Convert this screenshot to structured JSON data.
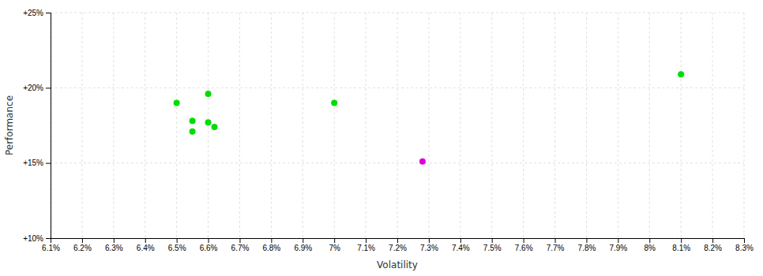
{
  "chart_data": {
    "type": "scatter",
    "xlabel": "Volatility",
    "ylabel": "Performance",
    "xlim": [
      0.061,
      0.083
    ],
    "ylim": [
      0.1,
      0.25
    ],
    "xticks": [
      {
        "value": 0.061,
        "label": "6.1%"
      },
      {
        "value": 0.062,
        "label": "6.2%"
      },
      {
        "value": 0.063,
        "label": "6.3%"
      },
      {
        "value": 0.064,
        "label": "6.4%"
      },
      {
        "value": 0.065,
        "label": "6.5%"
      },
      {
        "value": 0.066,
        "label": "6.6%"
      },
      {
        "value": 0.067,
        "label": "6.7%"
      },
      {
        "value": 0.068,
        "label": "6.8%"
      },
      {
        "value": 0.069,
        "label": "6.9%"
      },
      {
        "value": 0.07,
        "label": "7%"
      },
      {
        "value": 0.071,
        "label": "7.1%"
      },
      {
        "value": 0.072,
        "label": "7.2%"
      },
      {
        "value": 0.073,
        "label": "7.3%"
      },
      {
        "value": 0.074,
        "label": "7.4%"
      },
      {
        "value": 0.075,
        "label": "7.5%"
      },
      {
        "value": 0.076,
        "label": "7.6%"
      },
      {
        "value": 0.077,
        "label": "7.7%"
      },
      {
        "value": 0.078,
        "label": "7.8%"
      },
      {
        "value": 0.079,
        "label": "7.9%"
      },
      {
        "value": 0.08,
        "label": "8%"
      },
      {
        "value": 0.081,
        "label": "8.1%"
      },
      {
        "value": 0.082,
        "label": "8.2%"
      },
      {
        "value": 0.083,
        "label": "8.3%"
      }
    ],
    "yticks": [
      {
        "value": 0.1,
        "label": "+10%"
      },
      {
        "value": 0.15,
        "label": "+15%"
      },
      {
        "value": 0.2,
        "label": "+20%"
      },
      {
        "value": 0.25,
        "label": "+25%"
      }
    ],
    "grid": true,
    "series": [
      {
        "color": "#00dd00",
        "x": [
          0.065,
          0.066,
          0.0655,
          0.066,
          0.0662,
          0.0655,
          0.07,
          0.081
        ],
        "values": [
          0.19,
          0.196,
          0.178,
          0.177,
          0.174,
          0.171,
          0.19,
          0.209
        ]
      },
      {
        "color": "#dd00dd",
        "x": [
          0.0728
        ],
        "values": [
          0.151
        ]
      }
    ]
  }
}
